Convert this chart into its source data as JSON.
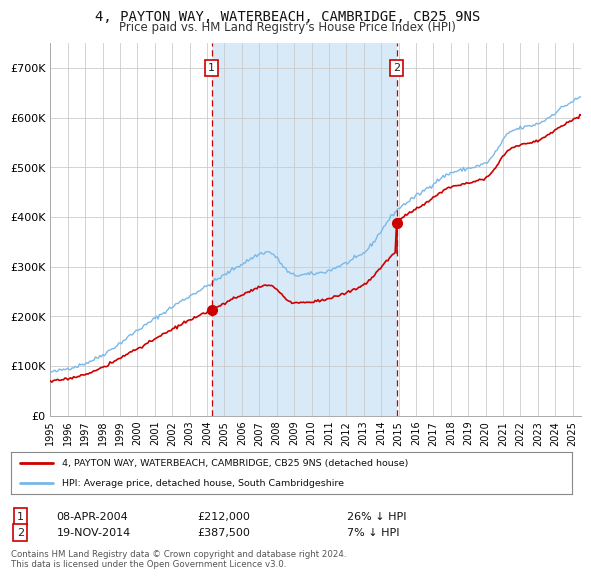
{
  "title": "4, PAYTON WAY, WATERBEACH, CAMBRIDGE, CB25 9NS",
  "subtitle": "Price paid vs. HM Land Registry's House Price Index (HPI)",
  "title_fontsize": 10,
  "subtitle_fontsize": 8.5,
  "hpi_color": "#7ab8e8",
  "price_color": "#cc0000",
  "fill_color": "#d8eaf8",
  "marker_color": "#cc0000",
  "vline_color": "#cc0000",
  "background_color": "#ffffff",
  "grid_color": "#cccccc",
  "ylim": [
    0,
    750000
  ],
  "yticks": [
    0,
    100000,
    200000,
    300000,
    400000,
    500000,
    600000,
    700000
  ],
  "ytick_labels": [
    "£0",
    "£100K",
    "£200K",
    "£300K",
    "£400K",
    "£500K",
    "£600K",
    "£700K"
  ],
  "sale1_date": "08-APR-2004",
  "sale1_price": 212000,
  "sale1_year": 2004.27,
  "sale1_hpi_pct": "26% ↓ HPI",
  "sale2_date": "19-NOV-2014",
  "sale2_price": 387500,
  "sale2_year": 2014.89,
  "sale2_hpi_pct": "7% ↓ HPI",
  "legend_line1": "4, PAYTON WAY, WATERBEACH, CAMBRIDGE, CB25 9NS (detached house)",
  "legend_line2": "HPI: Average price, detached house, South Cambridgeshire",
  "footnote": "Contains HM Land Registry data © Crown copyright and database right 2024.\nThis data is licensed under the Open Government Licence v3.0.",
  "xmin": 1995,
  "xmax": 2025.5
}
